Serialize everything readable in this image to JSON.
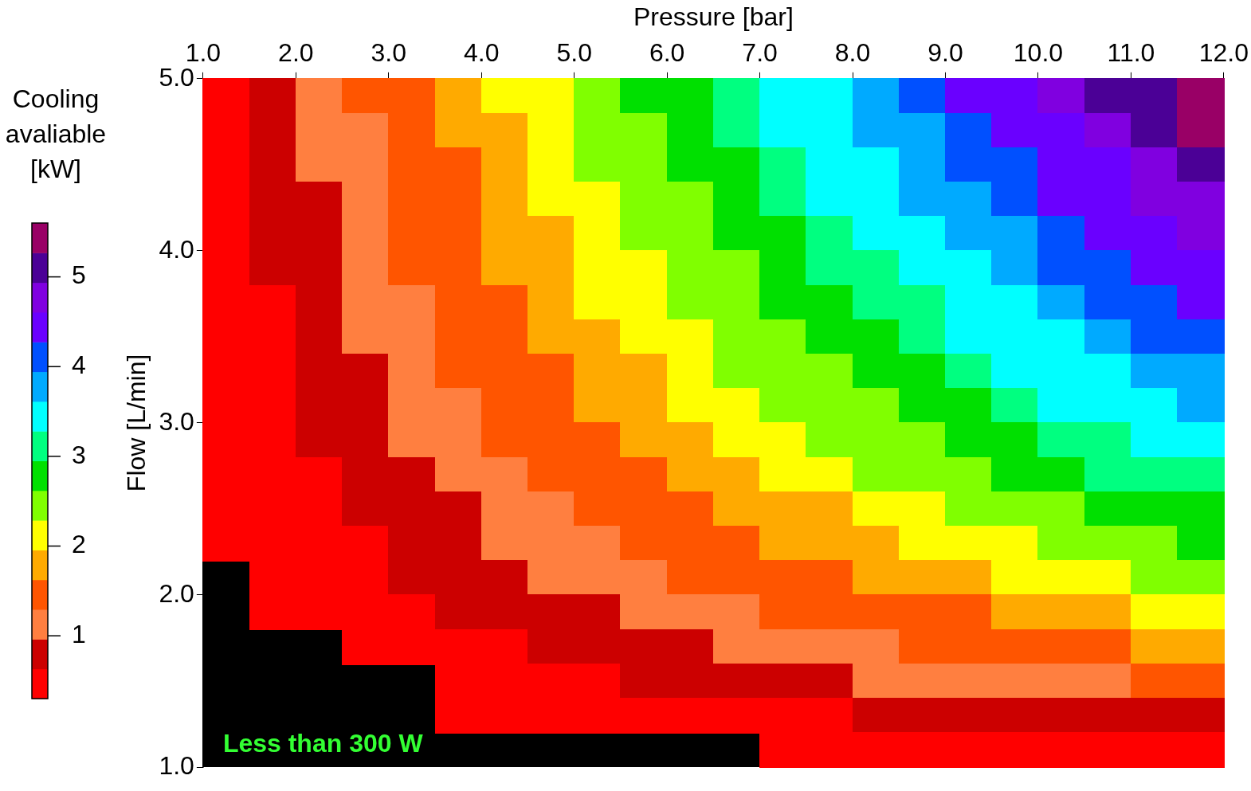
{
  "chart_data": {
    "type": "heatmap",
    "xlabel": "Pressure [bar]",
    "ylabel": "Flow [L/min]",
    "clabel": "Cooling avaliable [kW]",
    "annotations": [
      "Less than 300 W"
    ],
    "xlim": [
      1,
      12
    ],
    "xticks": [
      {
        "value": 1,
        "label": "1.0"
      },
      {
        "value": 2,
        "label": "2.0"
      },
      {
        "value": 3,
        "label": "3.0"
      },
      {
        "value": 4,
        "label": "4.0"
      },
      {
        "value": 5,
        "label": "5.0"
      },
      {
        "value": 6,
        "label": "6.0"
      },
      {
        "value": 7,
        "label": "7.0"
      },
      {
        "value": 8,
        "label": "8.0"
      },
      {
        "value": 9,
        "label": "9.0"
      },
      {
        "value": 10,
        "label": "10.0"
      },
      {
        "value": 11,
        "label": "11.0"
      },
      {
        "value": 12,
        "label": "12.0"
      }
    ],
    "ylim": [
      1,
      5
    ],
    "yticks": [
      {
        "value": 1,
        "label": "1.0"
      },
      {
        "value": 2,
        "label": "2.0"
      },
      {
        "value": 3,
        "label": "3.0"
      },
      {
        "value": 4,
        "label": "4.0"
      },
      {
        "value": 5,
        "label": "5.0"
      }
    ],
    "clim": [
      0.3,
      5.6
    ],
    "cticks": [
      1,
      2,
      3,
      4,
      5
    ],
    "x": [
      1.25,
      1.75,
      2.25,
      2.75,
      3.25,
      3.75,
      4.25,
      4.75,
      5.25,
      5.75,
      6.25,
      6.75,
      7.25,
      7.75,
      8.25,
      8.75,
      9.25,
      9.75,
      10.25,
      10.75,
      11.25,
      11.75
    ],
    "y": [
      4.9,
      4.7,
      4.5,
      4.3,
      4.1,
      3.9,
      3.7,
      3.5,
      3.3,
      3.1,
      2.9,
      2.7,
      2.5,
      2.3,
      2.1,
      1.9,
      1.7,
      1.5,
      1.3,
      1.1
    ],
    "cells": [
      [
        0.6,
        0.8,
        1.0,
        1.3,
        1.5,
        1.7,
        2.0,
        2.2,
        2.4,
        2.7,
        2.9,
        3.1,
        3.4,
        3.6,
        3.8,
        4.0,
        4.3,
        4.5,
        4.7,
        5.0,
        5.2,
        5.4
      ],
      [
        0.6,
        0.8,
        1.0,
        1.2,
        1.5,
        1.7,
        1.9,
        2.1,
        2.4,
        2.6,
        2.8,
        3.0,
        3.3,
        3.5,
        3.7,
        3.9,
        4.2,
        4.4,
        4.6,
        4.8,
        5.1,
        5.3
      ],
      [
        0.5,
        0.8,
        1.0,
        1.2,
        1.4,
        1.6,
        1.8,
        2.1,
        2.3,
        2.5,
        2.7,
        2.9,
        3.1,
        3.3,
        3.6,
        3.8,
        4.0,
        4.2,
        4.4,
        4.6,
        4.9,
        5.1
      ],
      [
        0.5,
        0.7,
        0.9,
        1.2,
        1.4,
        1.6,
        1.8,
        2.0,
        2.2,
        2.4,
        2.6,
        2.8,
        3.0,
        3.3,
        3.5,
        3.7,
        3.9,
        4.1,
        4.3,
        4.5,
        4.7,
        4.9
      ],
      [
        0.5,
        0.7,
        0.9,
        1.1,
        1.3,
        1.5,
        1.7,
        1.9,
        2.1,
        2.3,
        2.5,
        2.7,
        2.9,
        3.1,
        3.3,
        3.5,
        3.7,
        3.9,
        4.1,
        4.3,
        4.5,
        4.7
      ],
      [
        0.5,
        0.7,
        0.9,
        1.1,
        1.3,
        1.5,
        1.7,
        1.9,
        2.1,
        2.2,
        2.4,
        2.6,
        2.8,
        3.0,
        3.2,
        3.4,
        3.6,
        3.8,
        4.0,
        4.2,
        4.4,
        4.6
      ],
      [
        0.5,
        0.6,
        0.8,
        1.0,
        1.2,
        1.4,
        1.6,
        1.8,
        2.0,
        2.1,
        2.3,
        2.5,
        2.7,
        2.9,
        3.1,
        3.2,
        3.4,
        3.6,
        3.8,
        4.0,
        4.2,
        4.4
      ],
      [
        0.4,
        0.6,
        0.8,
        1.0,
        1.2,
        1.3,
        1.5,
        1.7,
        1.9,
        2.0,
        2.2,
        2.4,
        2.6,
        2.7,
        2.9,
        3.1,
        3.3,
        3.5,
        3.6,
        3.8,
        4.0,
        4.2
      ],
      [
        0.4,
        0.6,
        0.8,
        0.9,
        1.1,
        1.3,
        1.4,
        1.6,
        1.8,
        1.9,
        2.1,
        2.3,
        2.4,
        2.6,
        2.8,
        2.9,
        3.1,
        3.3,
        3.4,
        3.6,
        3.8,
        3.9
      ],
      [
        0.4,
        0.6,
        0.7,
        0.9,
        1.0,
        1.2,
        1.4,
        1.5,
        1.7,
        1.8,
        2.0,
        2.1,
        2.3,
        2.5,
        2.6,
        2.8,
        2.9,
        3.1,
        3.3,
        3.4,
        3.6,
        3.7
      ],
      [
        0.4,
        0.5,
        0.7,
        0.8,
        1.0,
        1.1,
        1.3,
        1.4,
        1.6,
        1.7,
        1.9,
        2.0,
        2.1,
        2.3,
        2.4,
        2.6,
        2.7,
        2.9,
        3.0,
        3.2,
        3.3,
        3.5
      ],
      [
        0.3,
        0.5,
        0.6,
        0.8,
        0.9,
        1.0,
        1.2,
        1.3,
        1.4,
        1.6,
        1.7,
        1.9,
        2.0,
        2.1,
        2.3,
        2.4,
        2.5,
        2.7,
        2.8,
        3.0,
        3.1,
        3.2
      ],
      [
        0.3,
        0.4,
        0.6,
        0.7,
        0.8,
        0.9,
        1.1,
        1.2,
        1.3,
        1.4,
        1.6,
        1.7,
        1.8,
        1.9,
        2.1,
        2.2,
        2.3,
        2.4,
        2.6,
        2.7,
        2.8,
        2.9
      ],
      [
        0.3,
        0.4,
        0.5,
        0.6,
        0.7,
        0.9,
        1.0,
        1.1,
        1.2,
        1.3,
        1.4,
        1.5,
        1.7,
        1.8,
        1.9,
        2.0,
        2.1,
        2.2,
        2.3,
        2.4,
        2.6,
        2.7
      ],
      [
        null,
        0.4,
        0.5,
        0.6,
        0.7,
        0.8,
        0.9,
        1.0,
        1.1,
        1.2,
        1.3,
        1.4,
        1.5,
        1.6,
        1.7,
        1.8,
        1.9,
        2.0,
        2.1,
        2.2,
        2.3,
        2.4
      ],
      [
        null,
        0.3,
        0.4,
        0.5,
        0.6,
        0.7,
        0.8,
        0.8,
        0.9,
        1.0,
        1.1,
        1.2,
        1.3,
        1.4,
        1.5,
        1.6,
        1.6,
        1.7,
        1.8,
        1.9,
        2.0,
        2.1
      ],
      [
        null,
        null,
        null,
        0.4,
        0.5,
        0.6,
        0.6,
        0.7,
        0.8,
        0.9,
        0.9,
        1.0,
        1.1,
        1.1,
        1.2,
        1.3,
        1.4,
        1.4,
        1.5,
        1.6,
        1.7,
        1.7
      ],
      [
        null,
        null,
        null,
        null,
        null,
        0.4,
        0.5,
        0.6,
        0.6,
        0.7,
        0.7,
        0.8,
        0.8,
        0.9,
        1.0,
        1.0,
        1.1,
        1.1,
        1.2,
        1.2,
        1.3,
        1.4
      ],
      [
        null,
        null,
        null,
        null,
        null,
        0.3,
        0.3,
        0.4,
        0.4,
        0.5,
        0.5,
        0.5,
        0.6,
        0.6,
        0.7,
        0.7,
        0.7,
        0.8,
        0.8,
        0.9,
        0.9,
        0.9
      ],
      [
        null,
        null,
        null,
        null,
        null,
        null,
        null,
        null,
        null,
        null,
        null,
        null,
        0.3,
        0.3,
        0.3,
        0.4,
        0.4,
        0.4,
        0.4,
        0.4,
        0.5,
        0.5
      ]
    ]
  }
}
